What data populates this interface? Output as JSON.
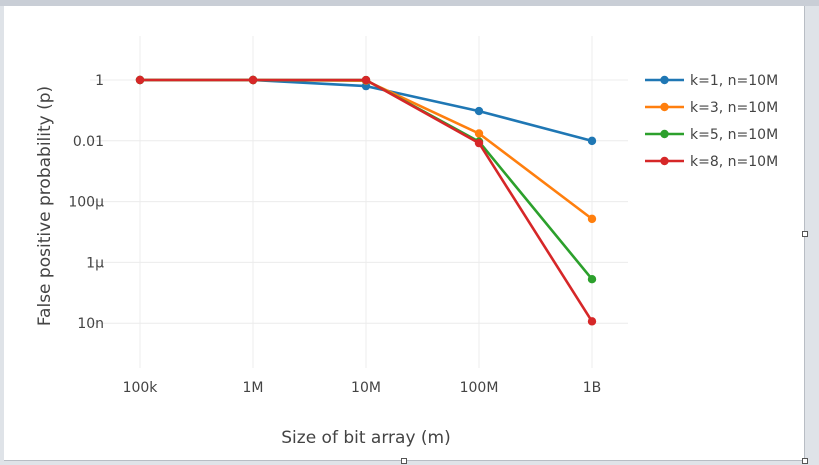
{
  "chart_data": {
    "type": "line",
    "xlabel": "Size of bit array (m)",
    "ylabel": "False positive probability (p)",
    "x_scale": "log",
    "y_scale": "log",
    "x_ticks": [
      {
        "value": 100000,
        "label": "100k"
      },
      {
        "value": 1000000,
        "label": "1M"
      },
      {
        "value": 10000000,
        "label": "10M"
      },
      {
        "value": 100000000,
        "label": "100M"
      },
      {
        "value": 1000000000,
        "label": "1B"
      }
    ],
    "y_ticks": [
      {
        "value": 1,
        "label": "1"
      },
      {
        "value": 0.01,
        "label": "0.01"
      },
      {
        "value": 0.0001,
        "label": "100µ"
      },
      {
        "value": 1e-06,
        "label": "1µ"
      },
      {
        "value": 1e-08,
        "label": "10n"
      }
    ],
    "xlim": [
      100000,
      1000000000
    ],
    "ylim": [
      1e-10,
      1
    ],
    "grid": true,
    "legend_position": "top-right",
    "x": [
      100000,
      1000000,
      10000000,
      100000000,
      1000000000
    ],
    "series": [
      {
        "name": "k=1, n=10M",
        "color": "#1f77b4",
        "values": [
          1,
          0.99995,
          0.63,
          0.095,
          0.00995
        ]
      },
      {
        "name": "k=3, n=10M",
        "color": "#ff7f0e",
        "values": [
          1,
          0.99996,
          0.95,
          0.0174,
          2.7e-05
        ]
      },
      {
        "name": "k=5, n=10M",
        "color": "#2ca02c",
        "values": [
          1,
          0.99999,
          0.99,
          0.0094,
          2.8e-07
        ]
      },
      {
        "name": "k=8, n=10M",
        "color": "#d62728",
        "values": [
          1,
          1,
          0.999,
          0.0084,
          1.15e-08
        ]
      }
    ]
  }
}
